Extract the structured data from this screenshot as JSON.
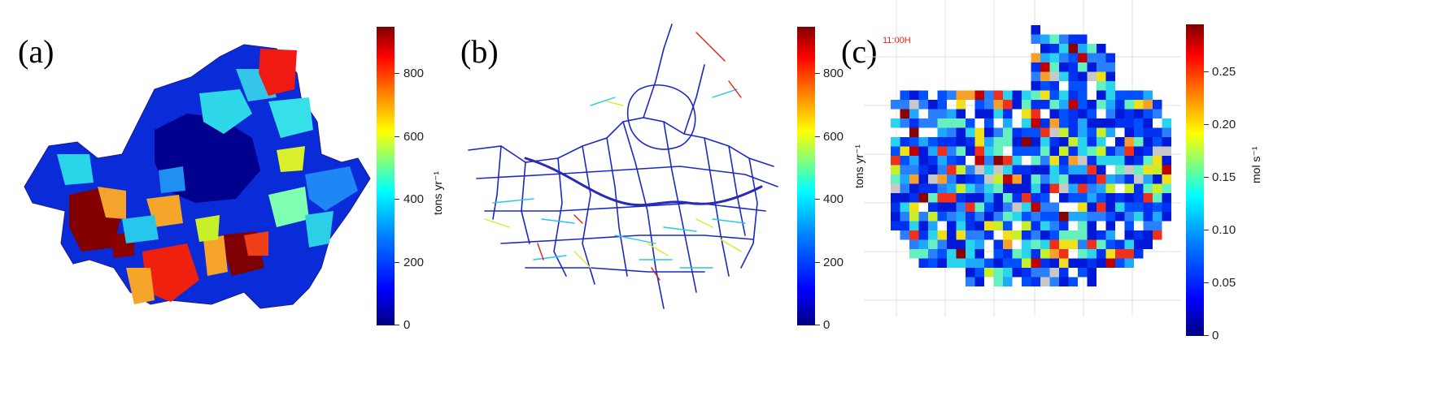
{
  "panels": [
    {
      "label": "(a)",
      "colorbar": {
        "unit": "tons yr⁻¹",
        "min": 0,
        "max": 950,
        "ticks": [
          "0",
          "200",
          "400",
          "600",
          "800"
        ],
        "colormap": "jet"
      }
    },
    {
      "label": "(b)",
      "colorbar": {
        "unit": "tons yr⁻¹",
        "min": 0,
        "max": 950,
        "ticks": [
          "0",
          "200",
          "400",
          "600",
          "800"
        ],
        "colormap": "jet"
      }
    },
    {
      "label": "(c)",
      "time_label": "11:00H",
      "colorbar": {
        "unit": "mol s⁻¹",
        "min": 0,
        "max": 0.29,
        "ticks": [
          "0",
          "0.05",
          "0.10",
          "0.15",
          "0.20",
          "0.25"
        ],
        "colormap": "jet"
      }
    }
  ],
  "colors": {
    "dark_blue": "#00007f",
    "blue": "#0000ff",
    "cyan": "#00ffff",
    "yellow": "#ffff00",
    "red": "#ff0000",
    "dark_red": "#7f0000"
  }
}
